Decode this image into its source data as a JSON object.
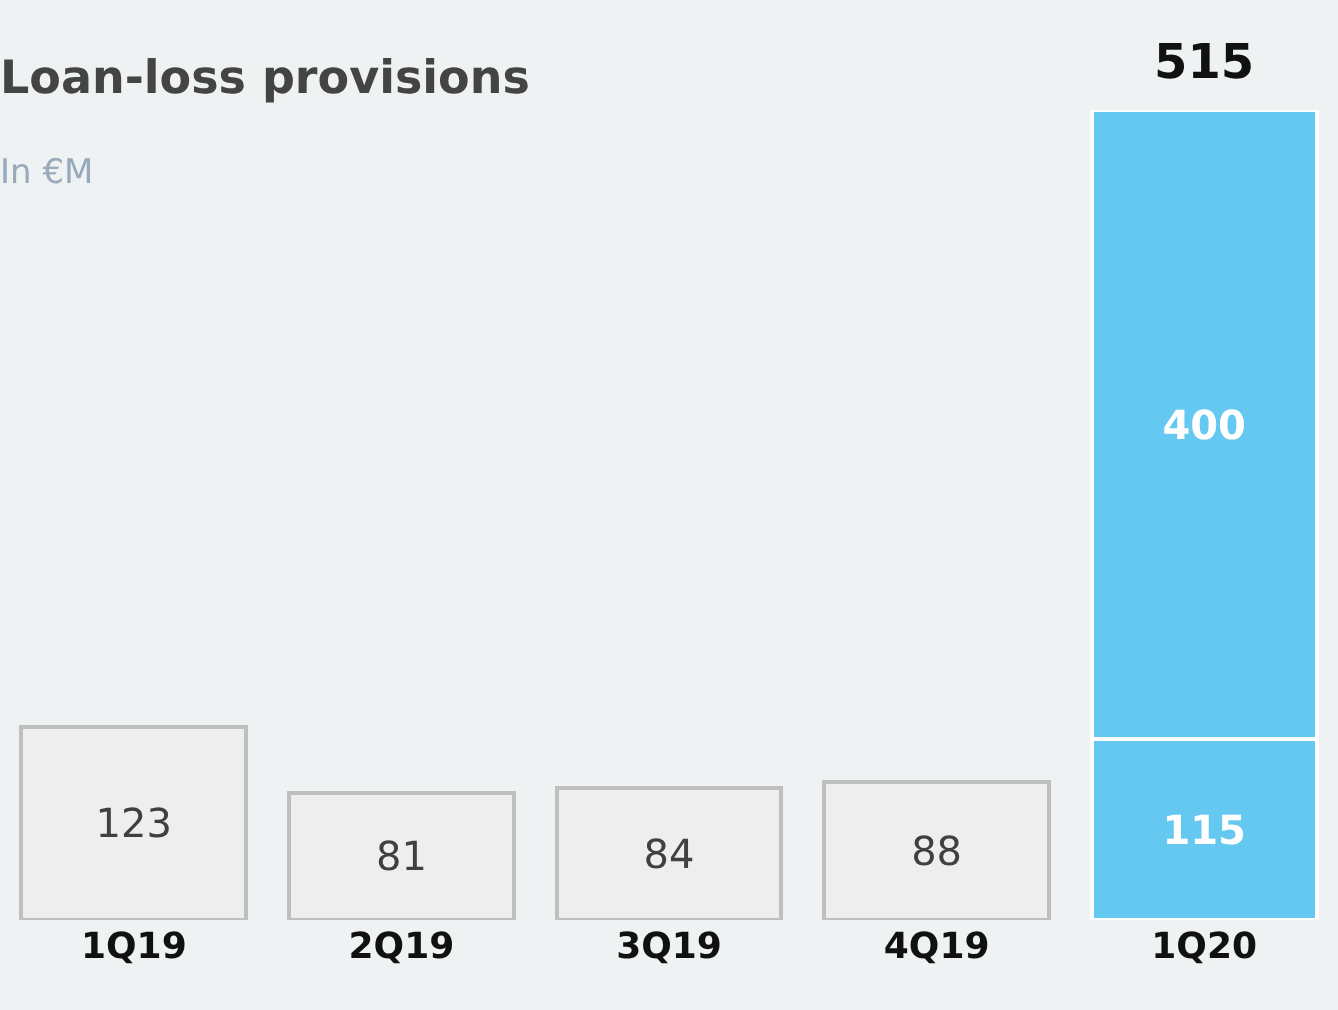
{
  "chart_data": {
    "type": "bar",
    "title": "Loan-loss provisions",
    "subtitle": "In €M",
    "categories": [
      "1Q19",
      "2Q19",
      "3Q19",
      "4Q19",
      "1Q20"
    ],
    "stacked": true,
    "data_labels": true,
    "legend": false,
    "grid": false,
    "series": [
      {
        "colors": [
          "#eeeeee",
          "#eeeeee",
          "#eeeeee",
          "#eeeeee",
          "#64c8f0"
        ],
        "values": [
          123,
          81,
          84,
          88,
          115
        ]
      },
      {
        "color": "#64c8f0",
        "values": [
          null,
          null,
          null,
          null,
          400
        ]
      }
    ],
    "totals": [
      null,
      null,
      null,
      null,
      "515"
    ]
  }
}
